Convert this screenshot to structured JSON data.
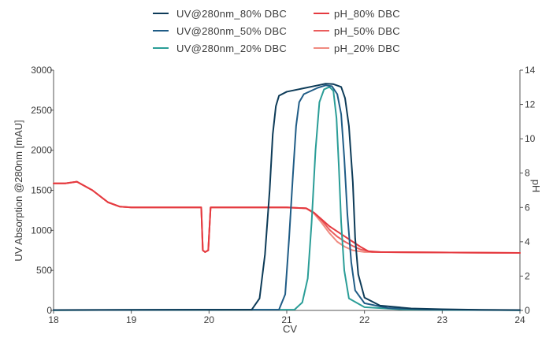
{
  "chart_data": {
    "type": "line",
    "xlabel": "CV",
    "ylabel": "UV Absorption @280nm [mAU]",
    "y2label": "pH",
    "xlim": [
      18,
      24
    ],
    "ylim": [
      0,
      3000
    ],
    "y2lim": [
      0,
      14
    ],
    "x_ticks": [
      18,
      19,
      20,
      21,
      22,
      23,
      24
    ],
    "y_ticks": [
      0,
      500,
      1000,
      1500,
      2000,
      2500,
      3000
    ],
    "y2_ticks": [
      0,
      2,
      4,
      6,
      8,
      10,
      12,
      14
    ],
    "grid": false,
    "legend_position": "top",
    "series": [
      {
        "name": "UV@280nm_80% DBC",
        "axis": "left",
        "color": "#0d3b58",
        "x": [
          18,
          20.55,
          20.65,
          20.72,
          20.78,
          20.82,
          20.86,
          20.9,
          21.0,
          21.2,
          21.4,
          21.5,
          21.6,
          21.7,
          21.75,
          21.8,
          21.85,
          21.88,
          21.92,
          22.0,
          22.2,
          22.6,
          23.0,
          23.5,
          24.0
        ],
        "values": [
          5,
          10,
          150,
          700,
          1500,
          2200,
          2550,
          2680,
          2730,
          2770,
          2810,
          2830,
          2825,
          2790,
          2650,
          2300,
          1600,
          900,
          450,
          160,
          60,
          25,
          15,
          8,
          5
        ]
      },
      {
        "name": "UV@280nm_50% DBC",
        "axis": "left",
        "color": "#1f5c86",
        "x": [
          18,
          20.9,
          20.98,
          21.03,
          21.08,
          21.12,
          21.16,
          21.22,
          21.4,
          21.5,
          21.58,
          21.65,
          21.7,
          21.74,
          21.78,
          21.83,
          21.88,
          22.0,
          22.3,
          22.8,
          23.5,
          24.0
        ],
        "values": [
          5,
          10,
          200,
          900,
          1700,
          2300,
          2600,
          2700,
          2780,
          2810,
          2800,
          2700,
          2450,
          1900,
          1200,
          600,
          250,
          90,
          30,
          12,
          6,
          4
        ]
      },
      {
        "name": "UV@280nm_20% DBC",
        "axis": "left",
        "color": "#2a9d97",
        "x": [
          18,
          21.1,
          21.2,
          21.27,
          21.32,
          21.37,
          21.42,
          21.48,
          21.55,
          21.6,
          21.64,
          21.67,
          21.7,
          21.74,
          21.8,
          22.0,
          22.5,
          23.0,
          24.0
        ],
        "values": [
          3,
          10,
          100,
          400,
          1100,
          2000,
          2600,
          2760,
          2790,
          2740,
          2400,
          1800,
          1100,
          500,
          150,
          40,
          12,
          6,
          3
        ]
      },
      {
        "name": "pH_80% DBC",
        "axis": "right",
        "color": "#e53a40",
        "x": [
          18,
          18.15,
          18.3,
          18.5,
          18.7,
          18.85,
          19.0,
          19.5,
          19.9,
          19.92,
          19.95,
          19.99,
          20.02,
          20.3,
          21.0,
          21.25,
          21.35,
          21.45,
          21.55,
          21.65,
          21.75,
          21.85,
          21.95,
          22.05,
          22.2,
          24.0
        ],
        "values": [
          7.4,
          7.4,
          7.5,
          7.0,
          6.3,
          6.05,
          6.0,
          6.0,
          6.0,
          3.5,
          3.4,
          3.5,
          6.0,
          6.0,
          6.0,
          5.95,
          5.7,
          5.3,
          4.9,
          4.6,
          4.3,
          4.0,
          3.7,
          3.45,
          3.4,
          3.35
        ]
      },
      {
        "name": "pH_50% DBC",
        "axis": "right",
        "color": "#ea5d5d",
        "x": [
          18,
          18.15,
          18.3,
          18.5,
          18.7,
          18.85,
          19.0,
          19.5,
          19.9,
          19.92,
          19.95,
          19.99,
          20.02,
          20.3,
          21.0,
          21.25,
          21.35,
          21.45,
          21.55,
          21.65,
          21.75,
          21.85,
          21.95,
          22.1,
          24.0
        ],
        "values": [
          7.4,
          7.4,
          7.5,
          7.0,
          6.3,
          6.05,
          6.0,
          6.0,
          6.0,
          3.5,
          3.4,
          3.5,
          6.0,
          6.0,
          6.0,
          5.95,
          5.7,
          5.25,
          4.7,
          4.3,
          4.0,
          3.75,
          3.55,
          3.4,
          3.35
        ]
      },
      {
        "name": "pH_20% DBC",
        "axis": "right",
        "color": "#f08a80",
        "x": [
          18,
          18.15,
          18.3,
          18.5,
          18.7,
          18.85,
          19.0,
          19.5,
          19.9,
          19.92,
          19.95,
          19.99,
          20.02,
          20.3,
          21.0,
          21.25,
          21.35,
          21.45,
          21.55,
          21.65,
          21.75,
          21.85,
          22.0,
          24.0
        ],
        "values": [
          7.4,
          7.4,
          7.5,
          7.0,
          6.3,
          6.05,
          6.0,
          6.0,
          6.0,
          3.5,
          3.4,
          3.5,
          6.0,
          6.0,
          6.0,
          5.95,
          5.65,
          5.1,
          4.5,
          4.0,
          3.7,
          3.5,
          3.4,
          3.35
        ]
      }
    ]
  }
}
